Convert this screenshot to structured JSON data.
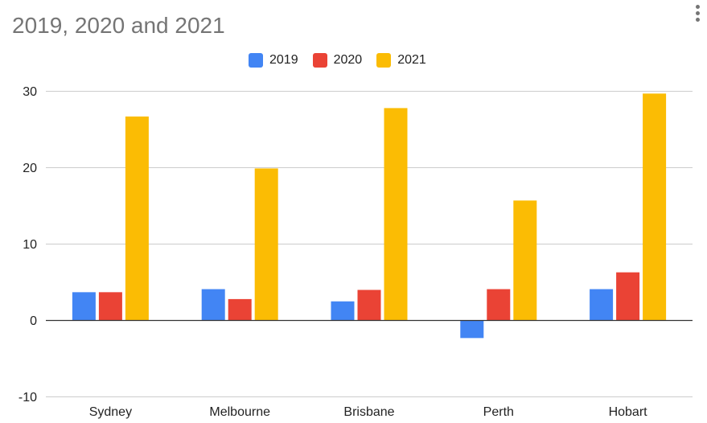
{
  "chart_data": {
    "type": "bar",
    "title": "2019, 2020 and 2021",
    "categories": [
      "Sydney",
      "Melbourne",
      "Brisbane",
      "Perth",
      "Hobart"
    ],
    "series": [
      {
        "name": "2019",
        "color": "#4285F4",
        "values": [
          3.7,
          4.1,
          2.5,
          -2.3,
          4.1
        ]
      },
      {
        "name": "2020",
        "color": "#EA4335",
        "values": [
          3.7,
          2.8,
          4.0,
          4.1,
          6.3
        ]
      },
      {
        "name": "2021",
        "color": "#FBBC04",
        "values": [
          26.7,
          19.9,
          27.8,
          15.7,
          29.7
        ]
      }
    ],
    "ylim": [
      -10,
      30
    ],
    "yticks": [
      30,
      20,
      10,
      0,
      -10
    ],
    "xlabel": "",
    "ylabel": "",
    "grid": true,
    "legend_position": "top"
  }
}
